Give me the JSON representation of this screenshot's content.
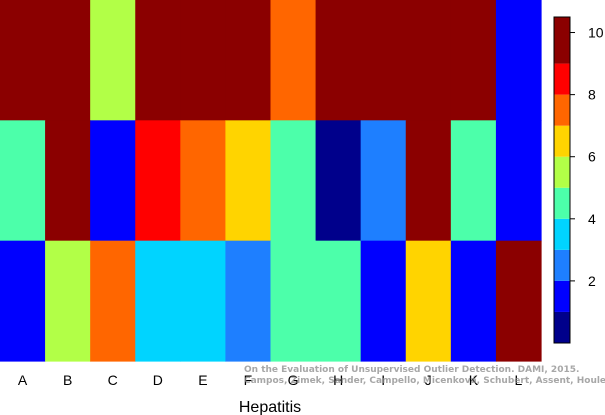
{
  "chart_data": {
    "type": "heatmap",
    "title": "",
    "xlabel": "Hepatitis",
    "ylabel": "",
    "columns": [
      "A",
      "B",
      "C",
      "D",
      "E",
      "F",
      "G",
      "H",
      "I",
      "J",
      "K",
      "L"
    ],
    "rows_top_to_bottom": [
      [
        10,
        10,
        6,
        10,
        10,
        10,
        8,
        10,
        10,
        10,
        10,
        2
      ],
      [
        5,
        10,
        2,
        9,
        8,
        7,
        5,
        1,
        3,
        10,
        5,
        2
      ],
      [
        2,
        6,
        8,
        4,
        4,
        3,
        5,
        5,
        2,
        7,
        2,
        10
      ]
    ],
    "colorbar": {
      "ticks": [
        2,
        4,
        6,
        8,
        10
      ],
      "levels": [
        {
          "from": 0,
          "to": 1,
          "color": "#00008b"
        },
        {
          "from": 1,
          "to": 2,
          "color": "#0000ff"
        },
        {
          "from": 2,
          "to": 3,
          "color": "#1e7fff"
        },
        {
          "from": 3,
          "to": 4,
          "color": "#00d4ff"
        },
        {
          "from": 4,
          "to": 5,
          "color": "#4cffaa"
        },
        {
          "from": 5,
          "to": 6,
          "color": "#b2ff47"
        },
        {
          "from": 6,
          "to": 7,
          "color": "#ffd400"
        },
        {
          "from": 7,
          "to": 8,
          "color": "#ff6600"
        },
        {
          "from": 8,
          "to": 9,
          "color": "#ff0000"
        },
        {
          "from": 9,
          "to": 10.5,
          "color": "#8b0000"
        }
      ]
    }
  },
  "watermark": {
    "line1": "On the Evaluation of Unsupervised Outlier Detection. DAMI, 2015.",
    "line2": "Campos, Zimek, Sander, Campello, Micenková, Schubert, Assent, Houle"
  }
}
